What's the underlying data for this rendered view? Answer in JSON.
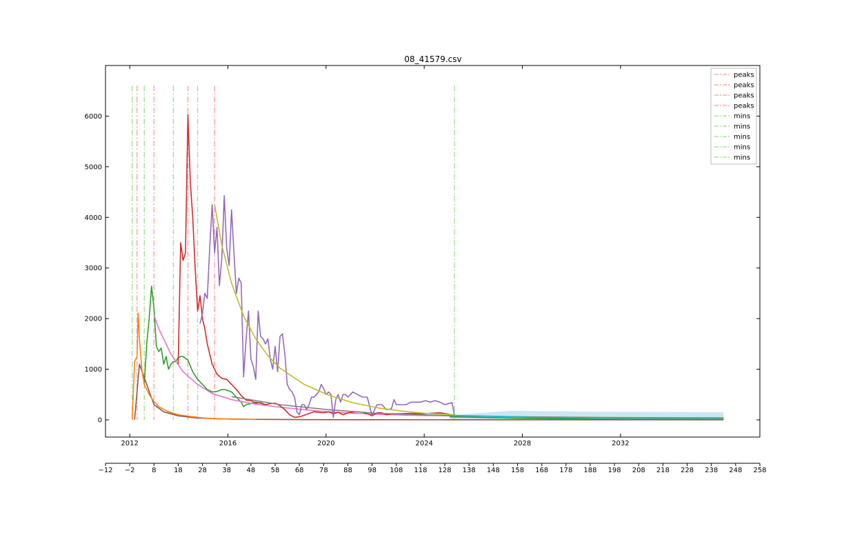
{
  "chart_data": {
    "type": "line",
    "title": "08_41579.csv",
    "xlabel": "",
    "ylabel": "",
    "ylim": [
      -340,
      7000
    ],
    "week_axis": {
      "range": [
        -12,
        258
      ],
      "ticks": [
        -12,
        -2,
        8,
        18,
        28,
        38,
        48,
        58,
        68,
        78,
        88,
        98,
        108,
        118,
        128,
        138,
        148,
        158,
        168,
        178,
        188,
        198,
        208,
        218,
        228,
        238,
        248,
        258
      ]
    },
    "year_axis": {
      "ticks": [
        "2012",
        "2016",
        "2020",
        "2024",
        "2028",
        "2032"
      ],
      "tick_weeks": [
        -2,
        38.5,
        79,
        119.5,
        160,
        200.5
      ]
    },
    "yticks": [
      0,
      1000,
      2000,
      3000,
      4000,
      5000,
      6000
    ],
    "grid": false,
    "legend_position": "top-right",
    "legend": [
      {
        "label": "peaks",
        "color": "#ff9896"
      },
      {
        "label": "peaks",
        "color": "#ff9896"
      },
      {
        "label": "peaks",
        "color": "#ff9896"
      },
      {
        "label": "peaks",
        "color": "#ff9896"
      },
      {
        "label": "mins",
        "color": "#98df8a"
      },
      {
        "label": "mins",
        "color": "#98df8a"
      },
      {
        "label": "mins",
        "color": "#98df8a"
      },
      {
        "label": "mins",
        "color": "#98df8a"
      },
      {
        "label": "mins",
        "color": "#98df8a"
      }
    ],
    "vlines": [
      {
        "kind": "mins",
        "x": -1,
        "color": "#98df8a"
      },
      {
        "kind": "peaks",
        "x": 1,
        "color": "#ff9896"
      },
      {
        "kind": "mins",
        "x": 4,
        "color": "#98df8a"
      },
      {
        "kind": "peaks",
        "x": 8,
        "color": "#ff9896"
      },
      {
        "kind": "mins",
        "x": 16,
        "color": "#98df8a"
      },
      {
        "kind": "peaks",
        "x": 22,
        "color": "#ff9896"
      },
      {
        "kind": "mins",
        "x": 26,
        "color": "#98df8a"
      },
      {
        "kind": "peaks",
        "x": 33,
        "color": "#ff9896"
      },
      {
        "kind": "mins",
        "x": 132,
        "color": "#98df8a"
      }
    ],
    "vline_ymax": 6600,
    "band": {
      "color": "#aed3ea",
      "upper": [
        [
          130,
          90
        ],
        [
          155,
          180
        ],
        [
          190,
          160
        ],
        [
          243,
          150
        ]
      ],
      "lower": [
        [
          243,
          0
        ],
        [
          130,
          0
        ]
      ]
    },
    "series": [
      {
        "color": "#2ca02c",
        "x": [
          4,
          5,
          6,
          7,
          8,
          9,
          10,
          11,
          12,
          13,
          14,
          15,
          16,
          17,
          18,
          19,
          20,
          22,
          24,
          26,
          28,
          30,
          32,
          34,
          36,
          38,
          40,
          42,
          44,
          45,
          46,
          48,
          50,
          52,
          54
        ],
        "y": [
          700,
          1500,
          2000,
          2640,
          2200,
          1450,
          1350,
          1420,
          1100,
          1250,
          1000,
          1100,
          1150,
          1150,
          1230,
          1250,
          1250,
          1180,
          950,
          800,
          700,
          600,
          550,
          560,
          600,
          590,
          550,
          450,
          350,
          260,
          300,
          320,
          350,
          330,
          300
        ]
      },
      {
        "color": "#e377c2",
        "x": [
          8,
          10,
          15,
          20,
          26,
          32,
          40,
          50,
          60,
          70,
          80,
          90,
          100,
          110,
          120,
          132
        ],
        "y": [
          2070,
          1800,
          1300,
          950,
          700,
          520,
          400,
          310,
          250,
          200,
          160,
          130,
          110,
          95,
          85,
          80
        ]
      },
      {
        "color": "#d62728",
        "x": [
          18,
          19,
          20,
          21,
          22,
          23,
          24,
          25,
          26,
          27,
          28,
          29,
          30,
          32,
          34,
          36,
          38,
          40,
          42,
          44,
          46,
          48,
          50,
          52,
          54,
          56,
          58,
          60,
          62,
          64,
          66,
          68,
          70,
          74,
          78,
          80,
          82,
          84,
          86,
          88,
          90,
          92,
          94,
          96,
          98,
          100,
          102,
          104,
          106,
          110,
          114,
          118,
          122,
          126,
          130,
          132
        ],
        "y": [
          1100,
          3500,
          3150,
          3300,
          6030,
          4700,
          4000,
          3000,
          2150,
          2450,
          2000,
          1800,
          1500,
          1100,
          900,
          820,
          800,
          700,
          600,
          480,
          390,
          380,
          330,
          340,
          300,
          320,
          330,
          280,
          200,
          100,
          50,
          60,
          90,
          160,
          140,
          160,
          120,
          150,
          100,
          140,
          150,
          160,
          150,
          120,
          80,
          140,
          140,
          100,
          120,
          120,
          130,
          120,
          130,
          140,
          110,
          80
        ]
      },
      {
        "color": "#9467bd",
        "x": [
          27,
          28,
          29,
          30,
          31,
          32,
          33,
          34,
          35,
          36,
          37,
          38,
          39,
          40,
          41,
          42,
          43,
          44,
          45,
          46,
          47,
          48,
          49,
          50,
          51,
          52,
          53,
          54,
          55,
          56,
          57,
          58,
          59,
          60,
          61,
          62,
          63,
          64,
          65,
          66,
          67,
          68,
          69,
          70,
          71,
          72,
          73,
          74,
          75,
          76,
          77,
          78,
          79,
          80,
          81,
          82,
          83,
          84,
          85,
          86,
          87,
          88,
          90,
          92,
          94,
          96,
          98,
          99,
          100,
          102,
          104,
          106,
          107,
          108,
          110,
          112,
          114,
          116,
          118,
          120,
          122,
          124,
          126,
          128,
          130,
          131,
          132
        ],
        "y": [
          1900,
          2100,
          2500,
          2400,
          3400,
          4250,
          3300,
          3800,
          2650,
          3200,
          4430,
          3400,
          3050,
          4150,
          3300,
          2500,
          2800,
          2700,
          850,
          1600,
          2150,
          1200,
          1050,
          800,
          2150,
          1650,
          1600,
          1500,
          1600,
          1200,
          1000,
          1450,
          950,
          1650,
          1700,
          1300,
          700,
          600,
          550,
          450,
          150,
          100,
          300,
          300,
          200,
          300,
          450,
          450,
          500,
          550,
          700,
          620,
          500,
          550,
          500,
          50,
          400,
          500,
          350,
          500,
          500,
          450,
          550,
          500,
          450,
          450,
          80,
          200,
          300,
          300,
          200,
          220,
          400,
          300,
          300,
          300,
          350,
          350,
          350,
          380,
          350,
          380,
          350,
          300,
          330,
          340,
          80
        ]
      },
      {
        "color": "#bcbd22",
        "x": [
          33,
          36,
          40,
          45,
          50,
          55,
          60,
          70,
          80,
          90,
          100,
          110,
          120,
          132
        ],
        "y": [
          4250,
          3450,
          2700,
          2050,
          1600,
          1270,
          1020,
          700,
          490,
          340,
          240,
          175,
          130,
          100
        ]
      },
      {
        "color": "#8c564b",
        "x": [
          0,
          2,
          5,
          8,
          12,
          18,
          25,
          35,
          50,
          70,
          100,
          130,
          160,
          200,
          243
        ],
        "y": [
          0,
          1100,
          700,
          300,
          160,
          80,
          40,
          20,
          10,
          5,
          3,
          2,
          2,
          2,
          2
        ]
      },
      {
        "color": "#ff7f0e",
        "x": [
          -1,
          0,
          1,
          1.5,
          2,
          3,
          4,
          6,
          8,
          10,
          14,
          18,
          24,
          30,
          40,
          50
        ],
        "y": [
          0,
          1150,
          1250,
          2110,
          1600,
          1000,
          700,
          500,
          360,
          260,
          160,
          100,
          60,
          30,
          15,
          8
        ]
      },
      {
        "color": "#7f7f7f",
        "x": [
          40,
          60,
          80,
          100,
          132,
          160,
          200,
          243
        ],
        "y": [
          460,
          300,
          200,
          130,
          80,
          60,
          45,
          40
        ]
      },
      {
        "color": "#17becf",
        "x": [
          130,
          150,
          170,
          190,
          210,
          243
        ],
        "y": [
          90,
          70,
          40,
          25,
          18,
          15
        ]
      },
      {
        "color": "#2ca02c",
        "x": [
          130,
          160,
          200,
          243
        ],
        "y": [
          60,
          30,
          12,
          8
        ]
      }
    ]
  }
}
